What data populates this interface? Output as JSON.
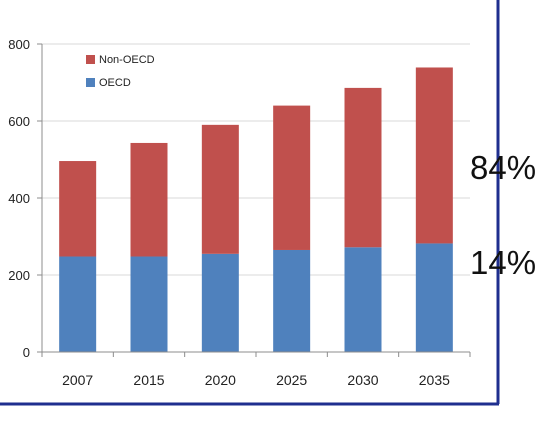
{
  "chart_data": {
    "type": "bar",
    "stacked": true,
    "categories": [
      "2007",
      "2015",
      "2020",
      "2025",
      "2030",
      "2035"
    ],
    "series": [
      {
        "name": "OECD",
        "color": "#4F81BD",
        "values": [
          248,
          248,
          255,
          265,
          272,
          282
        ]
      },
      {
        "name": "Non-OECD",
        "color": "#C0504D",
        "values": [
          248,
          295,
          335,
          375,
          414,
          457
        ]
      }
    ],
    "y_ticks": [
      "0",
      "200",
      "400",
      "600",
      "800"
    ],
    "ylim": [
      0,
      800
    ],
    "grid": true,
    "legend_position": "top-left",
    "title": "",
    "xlabel": "",
    "ylabel": "",
    "annotations": [
      "84%",
      "14%"
    ],
    "colors": {
      "frame": "#1F2F8F",
      "grid": "#D9D9D9",
      "axis": "#8C8C8C"
    }
  }
}
